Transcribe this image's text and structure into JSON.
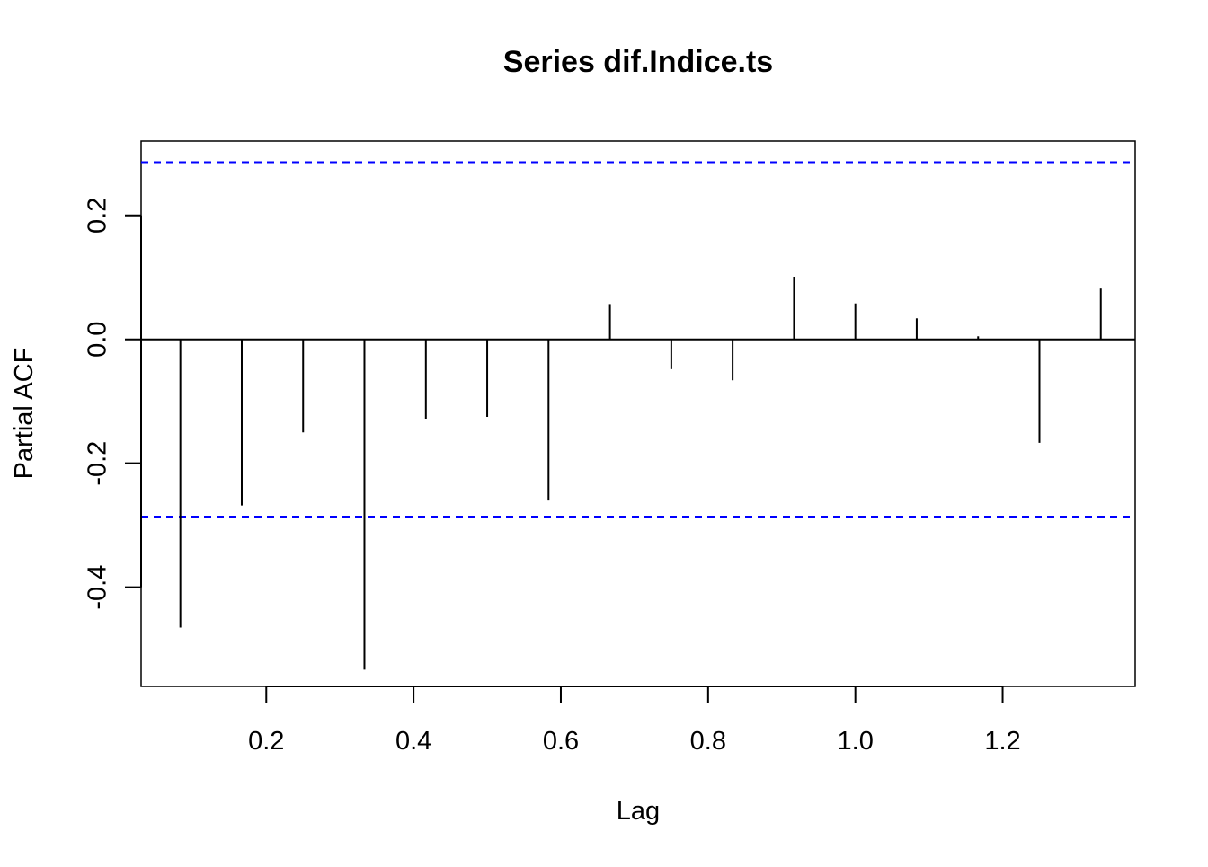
{
  "chart_data": {
    "type": "bar",
    "subtype": "pacf-spike",
    "title": "Series dif.Indice.ts",
    "xlabel": "Lag",
    "ylabel": "Partial ACF",
    "xlim": [
      0.03,
      1.38
    ],
    "ylim": [
      -0.56,
      0.32
    ],
    "xticks": [
      0.2,
      0.4,
      0.6,
      0.8,
      1.0,
      1.2
    ],
    "xtick_labels": [
      "0.2",
      "0.4",
      "0.6",
      "0.8",
      "1.0",
      "1.2"
    ],
    "yticks": [
      -0.4,
      -0.2,
      0.0,
      0.2
    ],
    "ytick_labels": [
      "-0.4",
      "-0.2",
      "0.0",
      "0.2"
    ],
    "x": [
      0.0833,
      0.1667,
      0.25,
      0.3333,
      0.4167,
      0.5,
      0.5833,
      0.6667,
      0.75,
      0.8333,
      0.9167,
      1.0,
      1.0833,
      1.1667,
      1.25,
      1.3333
    ],
    "values": [
      -0.465,
      -0.268,
      -0.15,
      -0.533,
      -0.128,
      -0.125,
      -0.26,
      0.057,
      -0.048,
      -0.066,
      0.101,
      0.058,
      0.034,
      0.005,
      -0.167,
      0.082
    ],
    "confidence_bound": 0.286,
    "grid": false,
    "colors": {
      "spikes": "#000000",
      "confidence_lines": "#0000ff",
      "zero_line": "#000000"
    }
  }
}
